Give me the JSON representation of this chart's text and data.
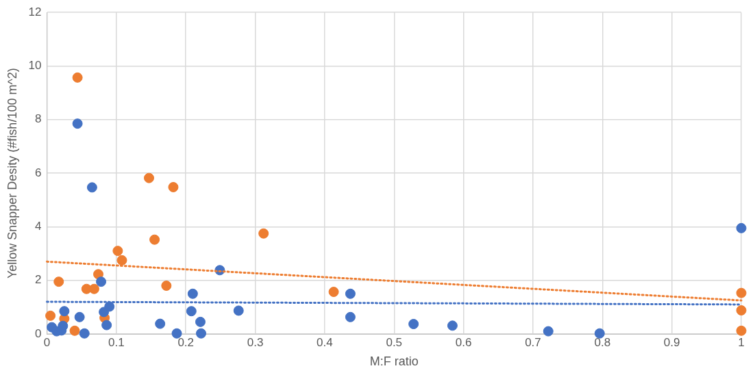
{
  "chart_data": {
    "type": "scatter",
    "xlabel": "M:F ratio",
    "ylabel": "Yellow Snapper Desity (#fish/100 m^2)",
    "xlim": [
      0,
      1
    ],
    "xticks": [
      0,
      0.1,
      0.2,
      0.3,
      0.4,
      0.5,
      0.6,
      0.7,
      0.8,
      0.9,
      1
    ],
    "ylim": [
      0,
      12
    ],
    "yticks": [
      0,
      2,
      4,
      6,
      8,
      10,
      12
    ],
    "grid": true,
    "legend": false,
    "marker": "circle",
    "series": [
      {
        "type": "scatter",
        "color": "#4472c4",
        "x": [
          0.044,
          0.065,
          0.078,
          0.025,
          0.047,
          0.082,
          0.09,
          0.086,
          0.007,
          0.014,
          0.021,
          0.023,
          0.054,
          0.163,
          0.187,
          0.21,
          0.208,
          0.221,
          0.222,
          0.249,
          0.276,
          0.437,
          0.437,
          0.528,
          0.584,
          0.722,
          0.796,
          1
        ],
        "values": [
          7.85,
          5.47,
          1.95,
          0.85,
          0.63,
          0.82,
          1.02,
          0.33,
          0.25,
          0.1,
          0.13,
          0.3,
          0.02,
          0.38,
          0.02,
          1.5,
          0.85,
          0.45,
          0.02,
          2.38,
          0.87,
          1.5,
          0.63,
          0.37,
          0.31,
          0.1,
          0.02,
          3.95
        ]
      },
      {
        "type": "scatter",
        "color": "#ed7d31",
        "x": [
          0.044,
          0.005,
          0.017,
          0.025,
          0.04,
          0.057,
          0.068,
          0.074,
          0.083,
          0.102,
          0.108,
          0.147,
          0.155,
          0.172,
          0.182,
          0.312,
          0.413,
          1,
          1,
          1
        ],
        "values": [
          9.57,
          0.68,
          1.95,
          0.57,
          0.12,
          1.68,
          1.68,
          2.23,
          0.6,
          3.1,
          2.75,
          5.82,
          3.52,
          1.8,
          5.48,
          3.75,
          1.57,
          1.53,
          0.88,
          0.12
        ]
      },
      {
        "type": "line",
        "color": "#4472c4",
        "line_style": "dotted",
        "marker": "none",
        "x": [
          0,
          1
        ],
        "values": [
          1.2,
          1.1
        ]
      },
      {
        "type": "line",
        "color": "#ed7d31",
        "line_style": "dotted",
        "marker": "none",
        "x": [
          0,
          1
        ],
        "values": [
          2.7,
          1.25
        ]
      }
    ]
  }
}
